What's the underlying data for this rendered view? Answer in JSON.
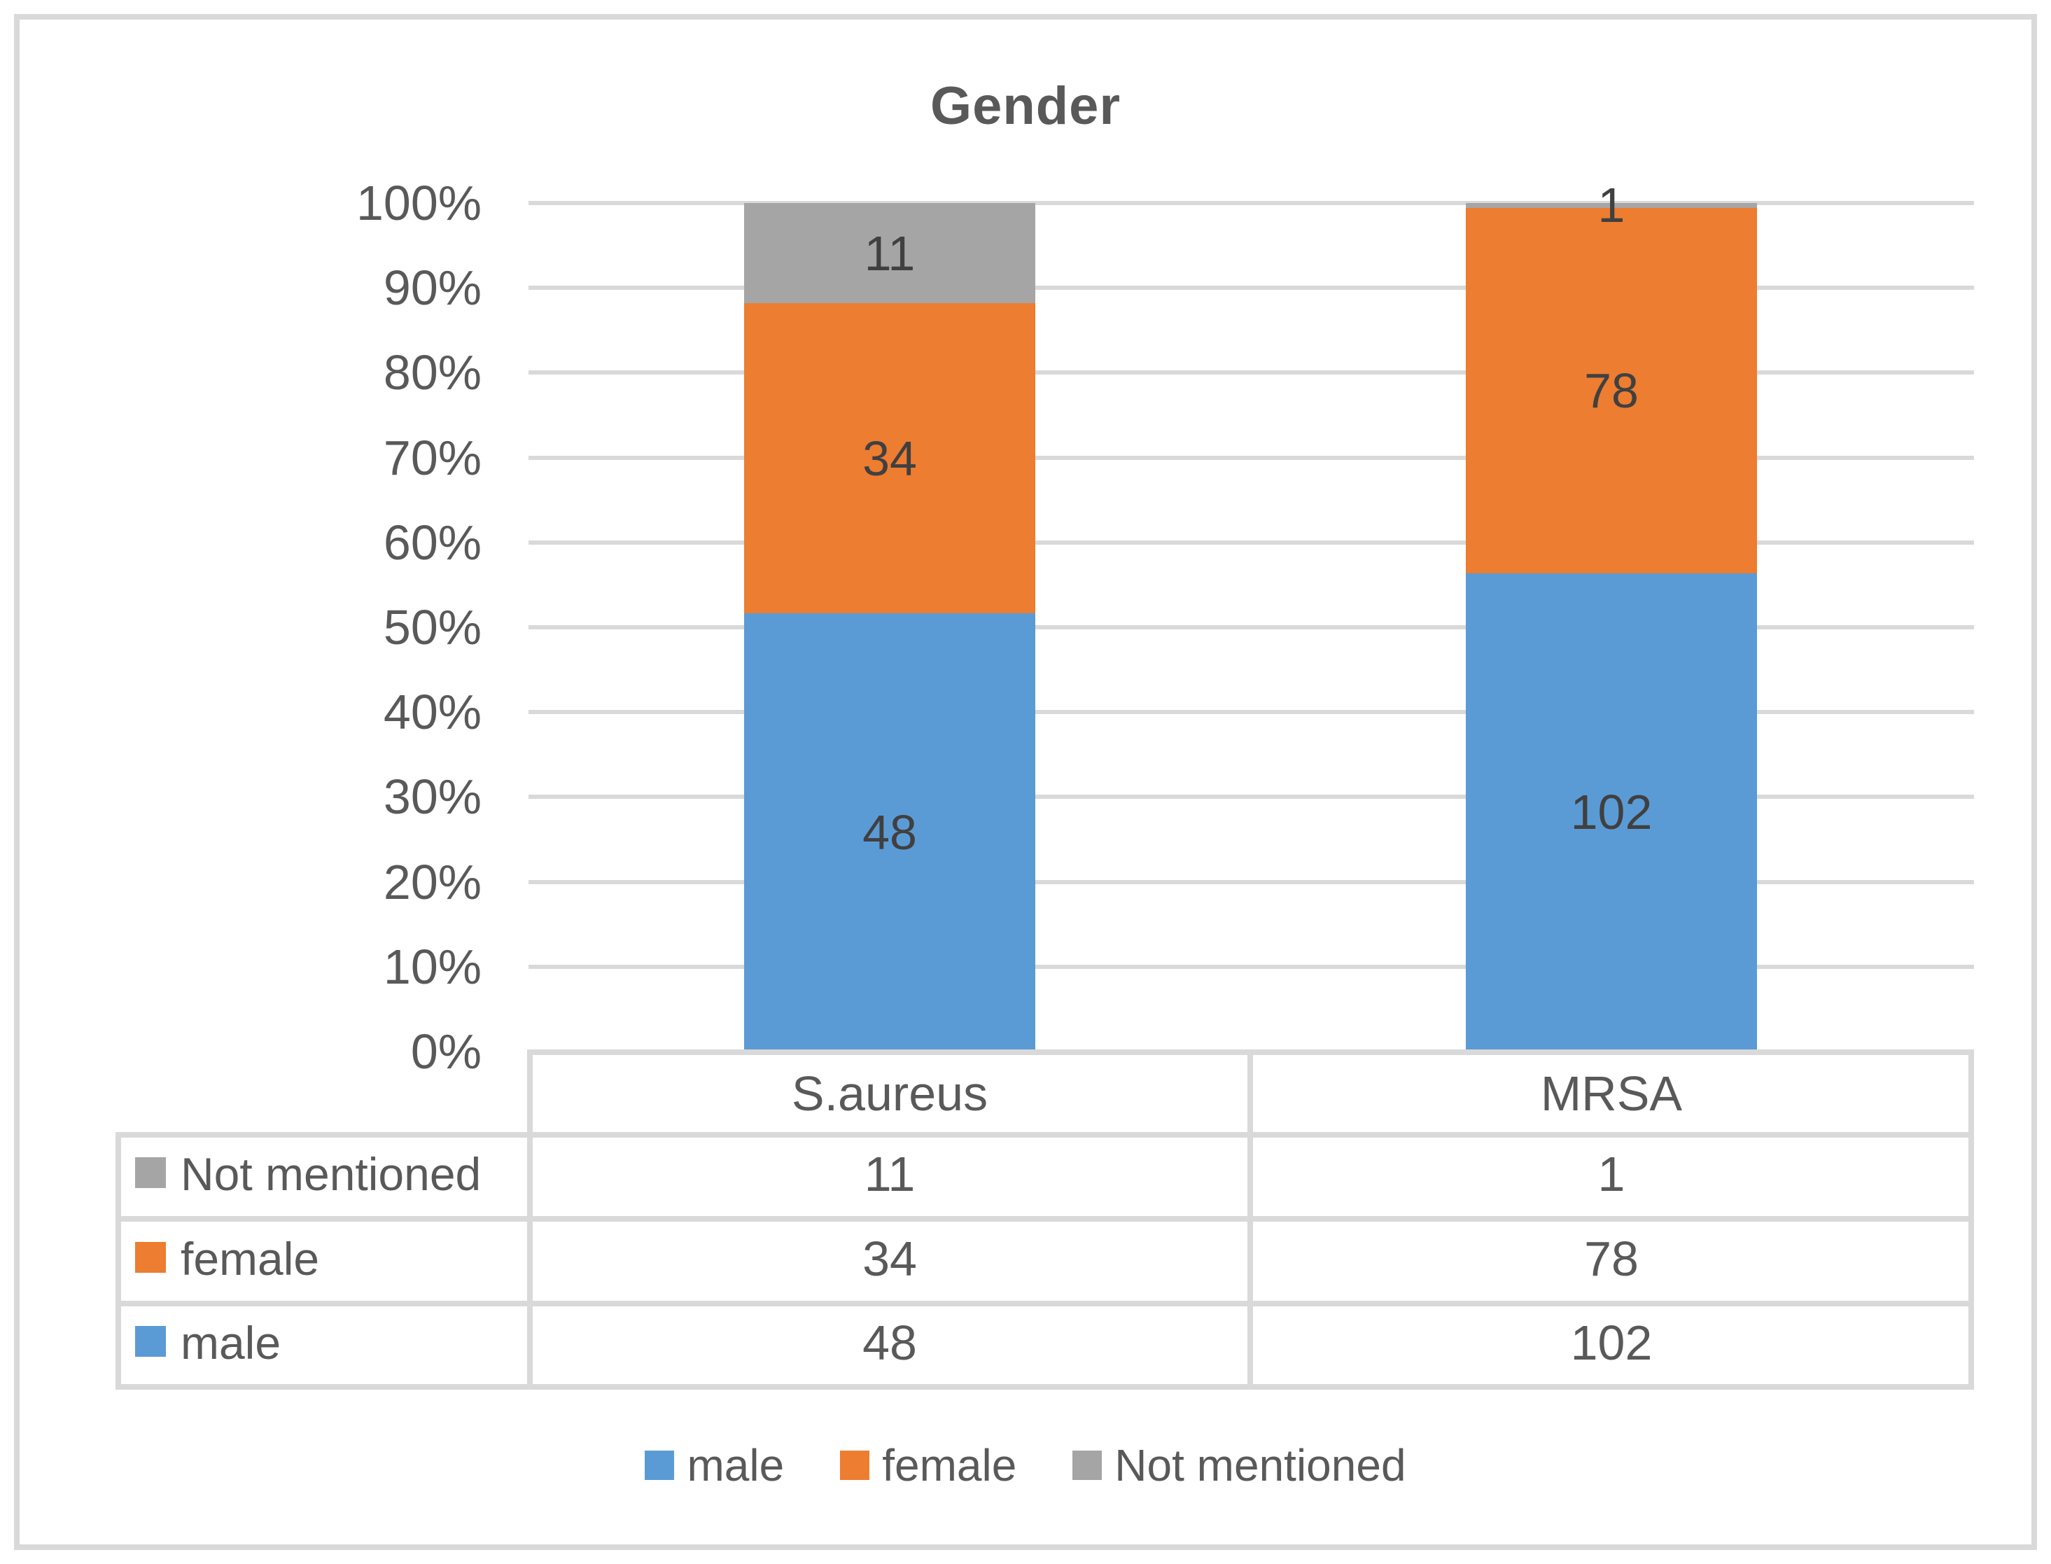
{
  "title": "Gender",
  "chart_data": {
    "type": "bar",
    "subtype": "100%-stacked-column",
    "title": "Gender",
    "categories": [
      "S.aureus",
      "MRSA"
    ],
    "series": [
      {
        "name": "male",
        "color": "#5B9BD5",
        "values": [
          48,
          102
        ]
      },
      {
        "name": "female",
        "color": "#ED7D31",
        "values": [
          34,
          78
        ]
      },
      {
        "name": "Not mentioned",
        "color": "#A5A5A5",
        "values": [
          11,
          1
        ]
      }
    ],
    "y_axis": {
      "min": 0,
      "max": 100,
      "tick_labels": [
        "0%",
        "10%",
        "20%",
        "30%",
        "40%",
        "50%",
        "60%",
        "70%",
        "80%",
        "90%",
        "100%"
      ]
    },
    "grid": true,
    "legend_position": "bottom",
    "legend_items": [
      "male",
      "female",
      "Not mentioned"
    ],
    "data_table": {
      "shown": true,
      "column_headers": [
        "S.aureus",
        "MRSA"
      ],
      "rows": [
        {
          "label": "Not mentioned",
          "values": [
            11,
            1
          ]
        },
        {
          "label": "female",
          "values": [
            34,
            78
          ]
        },
        {
          "label": "male",
          "values": [
            48,
            102
          ]
        }
      ]
    }
  },
  "colors": {
    "male": "#5B9BD5",
    "female": "#ED7D31",
    "not_mentioned": "#A5A5A5",
    "grid": "#D9D9D9",
    "text": "#595959",
    "data_label": "#404040",
    "background": "#FFFFFF"
  }
}
